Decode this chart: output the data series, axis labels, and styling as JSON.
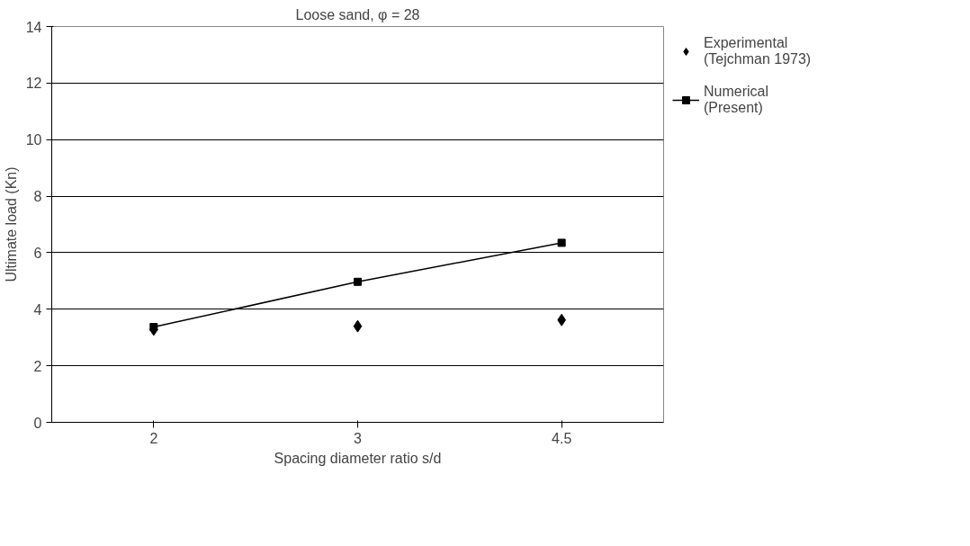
{
  "chart_data": {
    "type": "line",
    "title": "Loose sand, φ = 28",
    "xlabel": "Spacing diameter ratio s/d",
    "ylabel": "Ultimate load (Kn)",
    "categories": [
      "2",
      "3",
      "4.5"
    ],
    "series": [
      {
        "name": "Experimental\n(Tejchman 1973)",
        "type": "scatter",
        "marker": "diamond",
        "color": "#000000",
        "values": [
          3.28,
          3.4,
          3.62
        ]
      },
      {
        "name": "Numerical\n(Present)",
        "marker": "square",
        "color": "#000000",
        "values": [
          3.37,
          4.97,
          6.35
        ]
      }
    ],
    "ylim": [
      0,
      14
    ],
    "yticks": [
      0,
      2,
      4,
      6,
      8,
      10,
      12,
      14
    ],
    "grid": "y",
    "legend": "right"
  }
}
